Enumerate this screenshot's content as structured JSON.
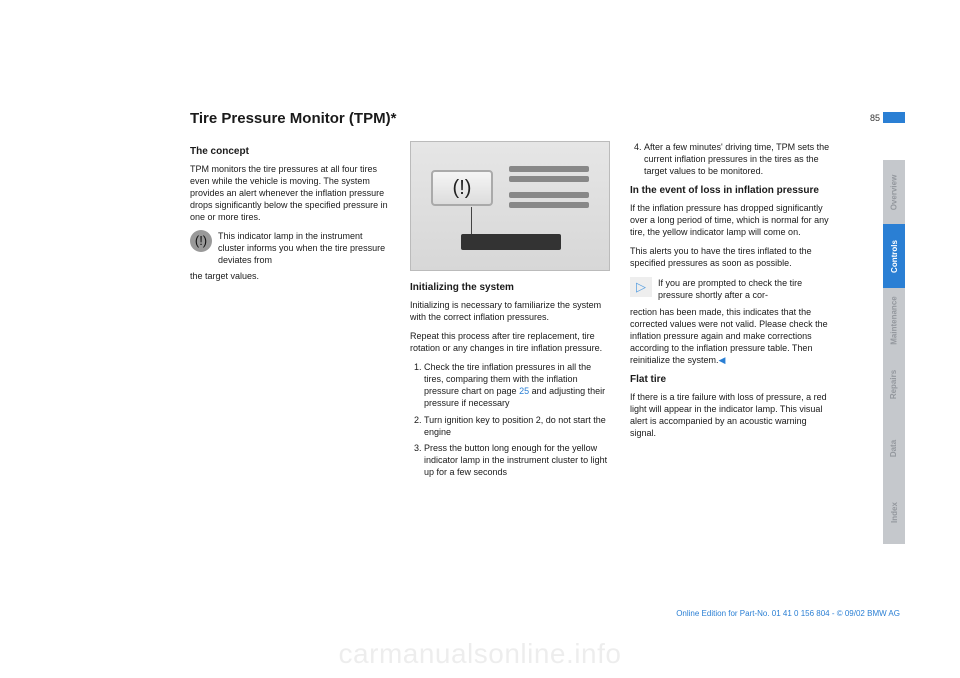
{
  "page_number": "85",
  "title": "Tire Pressure Monitor (TPM)*",
  "col1": {
    "h_concept": "The concept",
    "p_concept": "TPM monitors the tire pressures at all four tires even while the vehicle is moving. The system provides an alert whenever the inflation pressure drops significantly below the specified pressure in one or more tires.",
    "p_icon": "This indicator lamp in the instrument cluster informs you when the tire pressure deviates from",
    "p_icon_tail": "the target values."
  },
  "col2": {
    "h_init": "Initializing the system",
    "p_init1": "Initializing is necessary to familiarize the system with the correct inflation pressures.",
    "p_init2": "Repeat this process after tire replacement, tire rotation or any changes in tire inflation pressure.",
    "li1a": "Check the tire inflation pressures in all the tires, comparing them with the inflation pressure chart on page ",
    "li1_ref": "25",
    "li1b": " and adjusting their pressure if necessary",
    "li2": "Turn ignition key to position 2, do not start the engine",
    "li3": "Press the button long enough for the yellow indicator lamp in the instrument cluster to light up for a few seconds"
  },
  "col3": {
    "li4": "After a few minutes' driving time, TPM sets the current inflation pressures in the tires as the target values to be monitored.",
    "h_loss": "In the event of loss in inflation pressure",
    "p_loss1": "If the inflation pressure has dropped significantly over a long period of time, which is normal for any tire, the yellow indicator lamp will come on.",
    "p_loss2": "This alerts you to have the tires inflated to the specified pressures as soon as possible.",
    "p_note": "If you are prompted to check the tire pressure shortly after a cor-",
    "p_note_tail": "rection has been made, this indicates that the corrected values were not valid. Please check the inflation pressure again and make corrections according to the inflation pressure table. Then reinitialize the system.",
    "h_flat": "Flat tire",
    "p_flat": "If there is a tire failure with loss of pressure, a red light will appear in the indicator lamp. This visual alert is accompanied by an acoustic warning signal."
  },
  "tabs": {
    "overview": "Overview",
    "controls": "Controls",
    "maintenance": "Maintenance",
    "repairs": "Repairs",
    "data": "Data",
    "index": "Index"
  },
  "tab_colors": {
    "dim_bg": "#c5c8cc",
    "dim_text": "#94989e",
    "active_bg": "#2a7fd4",
    "active_text": "#ffffff"
  },
  "footer": "Online Edition for Part-No. 01 41 0 156 804 - © 09/02 BMW AG",
  "watermark": "carmanualsonline.info",
  "colors": {
    "accent": "#2a7fd4",
    "text": "#1a1a1a",
    "bg": "#ffffff"
  }
}
